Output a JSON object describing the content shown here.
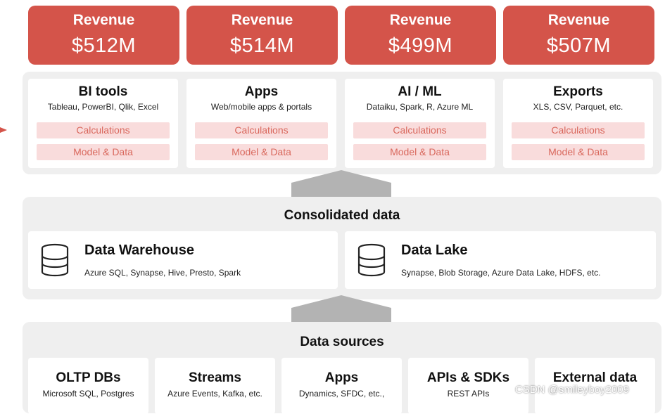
{
  "revenue": [
    {
      "label": "Revenue",
      "value": "$512M"
    },
    {
      "label": "Revenue",
      "value": "$514M"
    },
    {
      "label": "Revenue",
      "value": "$499M"
    },
    {
      "label": "Revenue",
      "value": "$507M"
    }
  ],
  "tools": [
    {
      "title": "BI tools",
      "subtitle": "Tableau, PowerBI, Qlik, Excel",
      "calc": "Calculations",
      "model": "Model & Data"
    },
    {
      "title": "Apps",
      "subtitle": "Web/mobile apps & portals",
      "calc": "Calculations",
      "model": "Model & Data"
    },
    {
      "title": "AI / ML",
      "subtitle": "Dataiku, Spark, R, Azure ML",
      "calc": "Calculations",
      "model": "Model & Data"
    },
    {
      "title": "Exports",
      "subtitle": "XLS, CSV, Parquet, etc.",
      "calc": "Calculations",
      "model": "Model & Data"
    }
  ],
  "consolidated": {
    "title": "Consolidated data",
    "stores": [
      {
        "title": "Data Warehouse",
        "subtitle": "Azure SQL, Synapse, Hive, Presto, Spark",
        "icon": "database-icon"
      },
      {
        "title": "Data Lake",
        "subtitle": "Synapse, Blob Storage, Azure Data Lake, HDFS, etc.",
        "icon": "database-icon"
      }
    ]
  },
  "sources": {
    "title": "Data sources",
    "items": [
      {
        "title": "OLTP DBs",
        "subtitle": "Microsoft SQL, Postgres"
      },
      {
        "title": "Streams",
        "subtitle": "Azure Events, Kafka, etc."
      },
      {
        "title": "Apps",
        "subtitle": "Dynamics, SFDC, etc.,"
      },
      {
        "title": "APIs & SDKs",
        "subtitle": "REST APIs"
      },
      {
        "title": "External data",
        "subtitle": ""
      }
    ]
  },
  "watermark": "CSDN @smileyboy2009",
  "colors": {
    "accent": "#d4544a",
    "pill_bg": "#f9dcdc",
    "pill_text": "#d9685d",
    "panel": "#efefef",
    "arrow": "#b3b3b3"
  }
}
